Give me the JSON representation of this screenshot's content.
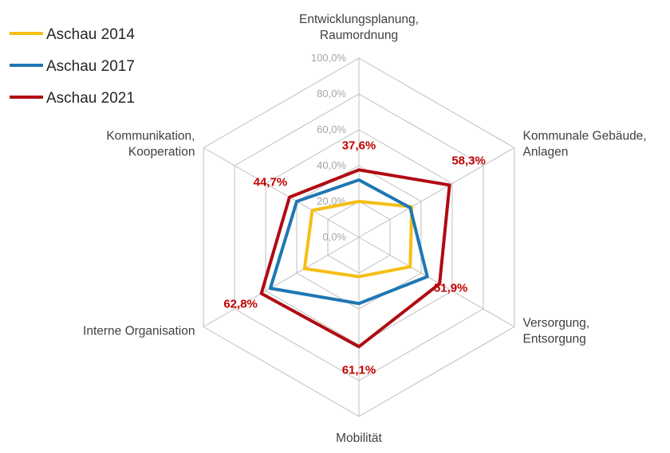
{
  "colors": {
    "grid": "#bfbfbf",
    "tick": "#a6a6a6",
    "axis_text": "#404040",
    "background": "#ffffff"
  },
  "chart_data": {
    "type": "radar",
    "title": "",
    "categories": [
      "Entwicklungsplanung, Raumordnung",
      "Kommunale Gebäude, Anlagen",
      "Versorgung, Entsorgung",
      "Mobilität",
      "Interne Organisation",
      "Kommunikation, Kooperation"
    ],
    "category_lines": [
      [
        "Entwicklungsplanung,",
        "Raumordnung"
      ],
      [
        "Kommunale Gebäude,",
        "Anlagen"
      ],
      [
        "Versorgung,",
        "Entsorgung"
      ],
      [
        "Mobilität"
      ],
      [
        "Interne Organisation"
      ],
      [
        "Kommunikation,",
        "Kooperation"
      ]
    ],
    "rlim": [
      0,
      100
    ],
    "ticks": [
      0,
      20,
      40,
      60,
      80,
      100
    ],
    "tick_labels": [
      "0,0%",
      "20,0%",
      "40,0%",
      "60,0%",
      "80,0%",
      "100,0%"
    ],
    "grid": true,
    "legend_position": "top-left",
    "series": [
      {
        "name": "Aschau 2014",
        "color": "#f5be15",
        "values": [
          20,
          34,
          33,
          22,
          35,
          30
        ]
      },
      {
        "name": "Aschau 2017",
        "color": "#1f77b4",
        "values": [
          32,
          33,
          44,
          37,
          57,
          40
        ]
      },
      {
        "name": "Aschau 2021",
        "color": "#b00b12",
        "values": [
          37.6,
          58.3,
          51.9,
          61.1,
          62.8,
          44.7
        ]
      }
    ],
    "data_labels": {
      "series": "Aschau 2021",
      "color": "#c00000",
      "texts": [
        "37,6%",
        "58,3%",
        "51,9%",
        "61,1%",
        "62,8%",
        "44,7%"
      ]
    }
  }
}
